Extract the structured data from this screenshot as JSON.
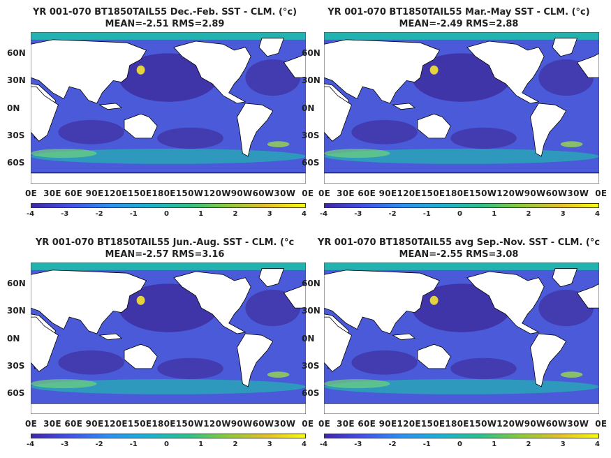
{
  "panels": [
    {
      "title1": "YR 001-070 BT1850TAIL55  Dec.-Feb. SST - CLM. (°c)",
      "title2": "MEAN=-2.51   RMS=2.89"
    },
    {
      "title1": "YR 001-070 BT1850TAIL55  Mar.-May SST - CLM. (°c)",
      "title2": "MEAN=-2.49   RMS=2.88"
    },
    {
      "title1": "YR 001-070 BT1850TAIL55 Jun.-Aug. SST - CLM. (°c",
      "title2": "MEAN=-2.57   RMS=3.16"
    },
    {
      "title1": "YR 001-070 BT1850TAIL55 avg Sep.-Nov. SST - CLM. (°c",
      "title2": "MEAN=-2.55   RMS=3.08"
    }
  ],
  "lat_labels": [
    "60N",
    "30N",
    "0N",
    "30S",
    "60S"
  ],
  "lon_labels": "0E  30E 60E 90E120E150E180E150W120W90W60W30W  0E",
  "colorbar_ticks": [
    "-4",
    "-3",
    "-2",
    "-1",
    "0",
    "1",
    "2",
    "3",
    "4"
  ],
  "colors": {
    "deep_blue": "#3e2fa0",
    "mid_blue": "#4a5ad8",
    "teal": "#22b3b0",
    "yellow": "#f6e332",
    "land": "#ffffff"
  }
}
